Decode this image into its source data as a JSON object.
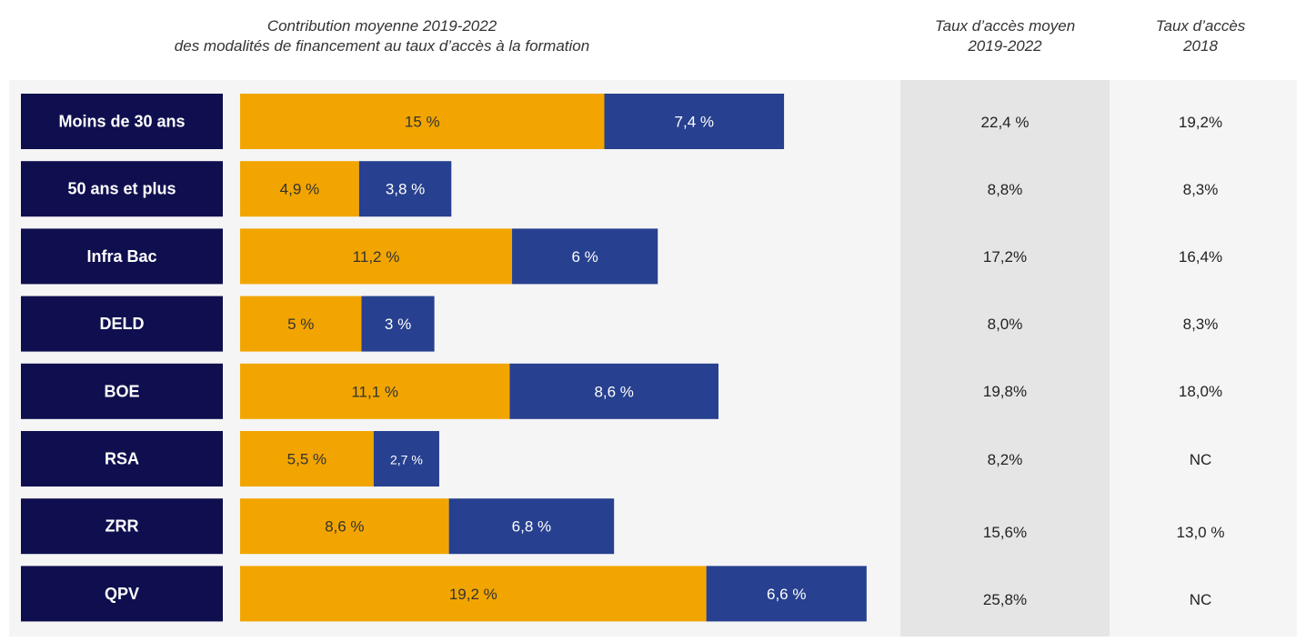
{
  "headers": {
    "main": [
      "Contribution moyenne 2019-2022",
      "des modalités de financement au taux d’accès à la formation"
    ],
    "avg": [
      "Taux d’accès moyen",
      "2019-2022"
    ],
    "y2018": [
      "Taux d’accès",
      "2018"
    ]
  },
  "colors": {
    "category_box": "#0f0f4f",
    "series_1": "#f2a500",
    "series_2": "#27408f",
    "panel": "#f5f5f5",
    "avg_column": "#e5e5e5"
  },
  "chart_data": {
    "type": "bar",
    "orientation": "horizontal",
    "stacked": true,
    "categories": [
      "Moins de 30 ans",
      "50 ans et plus",
      "Infra Bac",
      "DELD",
      "BOE",
      "RSA",
      "ZRR",
      "QPV"
    ],
    "series": [
      {
        "values": [
          15,
          4.9,
          11.2,
          5,
          11.1,
          5.5,
          8.6,
          19.2
        ],
        "labels": [
          "15 %",
          "4,9 %",
          "11,2 %",
          "5 %",
          "11,1 %",
          "5,5 %",
          "8,6 %",
          "19,2 %"
        ]
      },
      {
        "values": [
          7.4,
          3.8,
          6,
          3,
          8.6,
          2.7,
          6.8,
          6.6
        ],
        "labels": [
          "7,4 %",
          "3,8 %",
          "6 %",
          "3 %",
          "8,6 %",
          "2,7 %",
          "6,8 %",
          "6,6 %"
        ]
      }
    ]
  },
  "table": {
    "avg_2019_2022": [
      "22,4 %",
      "8,8%",
      "17,2%",
      "8,0%",
      "19,8%",
      "8,2%",
      "15,6%",
      "25,8%"
    ],
    "rate_2018": [
      "19,2%",
      "8,3%",
      "16,4%",
      "8,3%",
      "18,0%",
      "NC",
      "13,0 %",
      "NC"
    ]
  }
}
